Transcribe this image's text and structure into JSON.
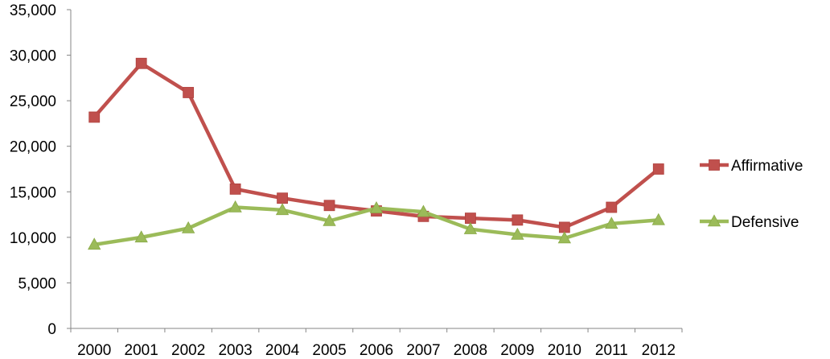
{
  "chart_data": {
    "type": "line",
    "x": [
      "2000",
      "2001",
      "2002",
      "2003",
      "2004",
      "2005",
      "2006",
      "2007",
      "2008",
      "2009",
      "2010",
      "2011",
      "2012"
    ],
    "series": [
      {
        "name": "Affirmative",
        "color": "#C0504D",
        "marker": "square",
        "values": [
          23200,
          29100,
          25900,
          15300,
          14300,
          13500,
          12900,
          12300,
          12100,
          11900,
          11100,
          13300,
          17500
        ]
      },
      {
        "name": "Defensive",
        "color": "#9BBB59",
        "marker": "triangle",
        "values": [
          9200,
          10000,
          11000,
          13300,
          13000,
          11800,
          13200,
          12800,
          10900,
          10300,
          9900,
          11500,
          11900
        ]
      }
    ],
    "y_ticks": [
      "0",
      "5,000",
      "10,000",
      "15,000",
      "20,000",
      "25,000",
      "30,000",
      "35,000"
    ],
    "ylim": [
      0,
      35000
    ],
    "grid": false,
    "legend_position": "right"
  }
}
